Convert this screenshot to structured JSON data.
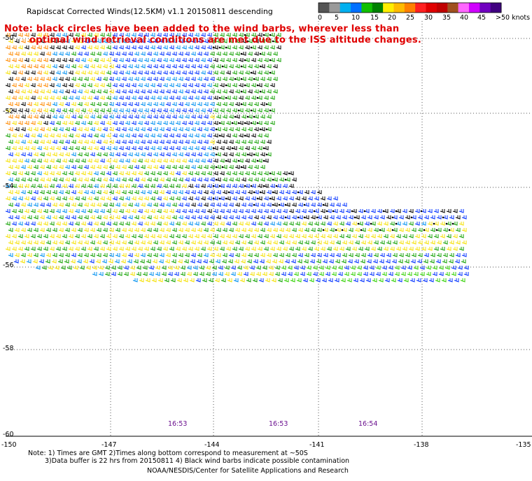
{
  "header": {
    "title": "Rapidscat Corrected Winds(12.5KM) v1.1 20150811 descending",
    "note_line1": "Note: black circles have been added to the wind barbs, wherever less than",
    "note_line2": "optimal wind retrieval conditions are met due to the ISS altitude changes."
  },
  "legend": {
    "values": [
      "0",
      "5",
      "10",
      "15",
      "20",
      "25",
      "30",
      "35",
      "40",
      "45",
      ">50 knots"
    ],
    "colors": [
      "#555555",
      "#9a9a9a",
      "#00b0f0",
      "#0070ff",
      "#10c000",
      "#008000",
      "#ffee00",
      "#ffbb00",
      "#ff8000",
      "#ff2020",
      "#e00000",
      "#c00000",
      "#a05020",
      "#ff66ff",
      "#d000ff",
      "#7000c0",
      "#400080"
    ]
  },
  "axes": {
    "y_labels": [
      "-50",
      "-52",
      "-54",
      "-56",
      "-58",
      "-60"
    ],
    "x_labels": [
      "-150",
      "-147",
      "-144",
      "-141",
      "-138",
      "-135"
    ]
  },
  "times": [
    "16:53",
    "16:53",
    "16:54"
  ],
  "footer": {
    "line1": "Note: 1) Times are GMT 2)Times along bottom correspond to measurement at ~50S",
    "line2": "3)Data buffer is 22 hrs from 20150811 4) Black wind barbs indicate possible contamination",
    "line3": "NOAA/NESDIS/Center for Satellite Applications and Research"
  }
}
